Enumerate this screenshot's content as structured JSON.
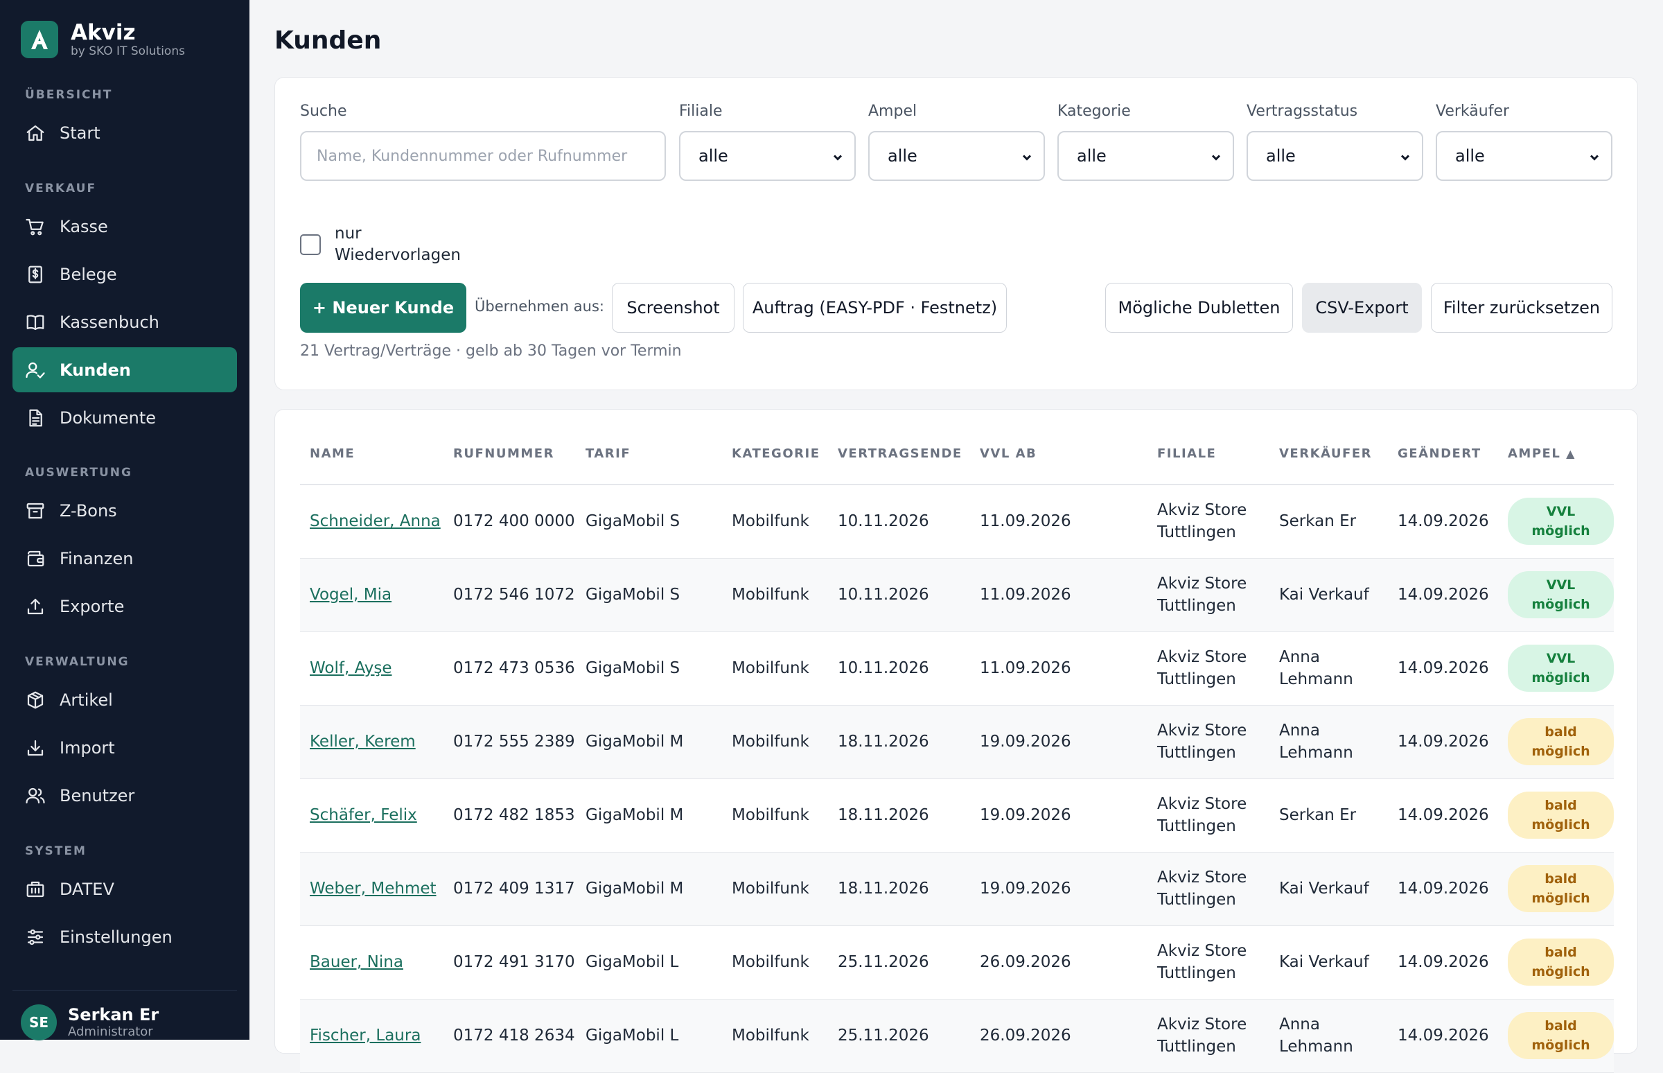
{
  "brand": {
    "name": "Akviz",
    "sub": "by SKO IT Solutions"
  },
  "sidebar": {
    "sections": {
      "uebersicht": "ÜBERSICHT",
      "verkauf": "VERKAUF",
      "auswertung": "AUSWERTUNG",
      "verwaltung": "VERWALTUNG",
      "system": "SYSTEM"
    },
    "items": [
      {
        "label": "Start",
        "icon": "home-icon"
      },
      {
        "label": "Kasse",
        "icon": "cart-icon"
      },
      {
        "label": "Belege",
        "icon": "receipt-icon"
      },
      {
        "label": "Kassenbuch",
        "icon": "book-icon"
      },
      {
        "label": "Kunden",
        "icon": "user-check-icon",
        "active": true
      },
      {
        "label": "Dokumente",
        "icon": "document-icon"
      },
      {
        "label": "Z-Bons",
        "icon": "archive-icon"
      },
      {
        "label": "Finanzen",
        "icon": "wallet-icon"
      },
      {
        "label": "Exporte",
        "icon": "upload-icon"
      },
      {
        "label": "Artikel",
        "icon": "package-icon"
      },
      {
        "label": "Import",
        "icon": "download-icon"
      },
      {
        "label": "Benutzer",
        "icon": "users-icon"
      },
      {
        "label": "DATEV",
        "icon": "building-icon"
      },
      {
        "label": "Einstellungen",
        "icon": "sliders-icon"
      }
    ],
    "user": {
      "initials": "SE",
      "name": "Serkan Er",
      "role": "Administrator"
    }
  },
  "page": {
    "title": "Kunden"
  },
  "filters": {
    "search_label": "Suche",
    "search_placeholder": "Name, Kundennummer oder Rufnummer",
    "filiale_label": "Filiale",
    "filiale_value": "alle",
    "ampel_label": "Ampel",
    "ampel_value": "alle",
    "kategorie_label": "Kategorie",
    "kategorie_value": "alle",
    "vertragsstatus_label": "Vertragsstatus",
    "vertragsstatus_value": "alle",
    "verkaeufer_label": "Verkäufer",
    "verkaeufer_value": "alle",
    "checkbox_label": "nur Wiedervorlagen",
    "checkbox_checked": false
  },
  "actions": {
    "new_customer": "+ Neuer Kunde",
    "uebernehmen_label": "Übernehmen aus:",
    "screenshot": "Screenshot",
    "auftrag": "Auftrag (EASY-PDF · Festnetz)",
    "dubletten": "Mögliche Dubletten",
    "csv_export": "CSV-Export",
    "reset": "Filter zurücksetzen"
  },
  "hint": "21 Vertrag/Verträge · gelb ab 30 Tagen vor Termin",
  "table": {
    "columns": [
      "NAME",
      "RUFNUMMER",
      "TARIF",
      "KATEGORIE",
      "VERTRAGSENDE",
      "VVL AB",
      "FILIALE",
      "VERKÄUFER",
      "GEÄNDERT",
      "AMPEL"
    ],
    "sort_indicator": "▲",
    "rows": [
      {
        "name": "Schneider, Anna",
        "phone": "0172 400 0000",
        "tarif": "GigaMobil S",
        "kategorie": "Mobilfunk",
        "ende": "10.11.2026",
        "vvl": "11.09.2026",
        "filiale": "Akviz Store Tuttlingen",
        "verkaeufer": "Serkan Er",
        "geaendert": "14.09.2026",
        "ampel": "VVL möglich",
        "ampel_color": "green"
      },
      {
        "name": "Vogel, Mia",
        "phone": "0172 546 1072",
        "tarif": "GigaMobil S",
        "kategorie": "Mobilfunk",
        "ende": "10.11.2026",
        "vvl": "11.09.2026",
        "filiale": "Akviz Store Tuttlingen",
        "verkaeufer": "Kai Verkauf",
        "geaendert": "14.09.2026",
        "ampel": "VVL möglich",
        "ampel_color": "green"
      },
      {
        "name": "Wolf, Ayşe",
        "phone": "0172 473 0536",
        "tarif": "GigaMobil S",
        "kategorie": "Mobilfunk",
        "ende": "10.11.2026",
        "vvl": "11.09.2026",
        "filiale": "Akviz Store Tuttlingen",
        "verkaeufer": "Anna Lehmann",
        "geaendert": "14.09.2026",
        "ampel": "VVL möglich",
        "ampel_color": "green"
      },
      {
        "name": "Keller, Kerem",
        "phone": "0172 555 2389",
        "tarif": "GigaMobil M",
        "kategorie": "Mobilfunk",
        "ende": "18.11.2026",
        "vvl": "19.09.2026",
        "filiale": "Akviz Store Tuttlingen",
        "verkaeufer": "Anna Lehmann",
        "geaendert": "14.09.2026",
        "ampel": "bald möglich",
        "ampel_color": "yellow"
      },
      {
        "name": "Schäfer, Felix",
        "phone": "0172 482 1853",
        "tarif": "GigaMobil M",
        "kategorie": "Mobilfunk",
        "ende": "18.11.2026",
        "vvl": "19.09.2026",
        "filiale": "Akviz Store Tuttlingen",
        "verkaeufer": "Serkan Er",
        "geaendert": "14.09.2026",
        "ampel": "bald möglich",
        "ampel_color": "yellow"
      },
      {
        "name": "Weber, Mehmet",
        "phone": "0172 409 1317",
        "tarif": "GigaMobil M",
        "kategorie": "Mobilfunk",
        "ende": "18.11.2026",
        "vvl": "19.09.2026",
        "filiale": "Akviz Store Tuttlingen",
        "verkaeufer": "Kai Verkauf",
        "geaendert": "14.09.2026",
        "ampel": "bald möglich",
        "ampel_color": "yellow"
      },
      {
        "name": "Bauer, Nina",
        "phone": "0172 491 3170",
        "tarif": "GigaMobil L",
        "kategorie": "Mobilfunk",
        "ende": "25.11.2026",
        "vvl": "26.09.2026",
        "filiale": "Akviz Store Tuttlingen",
        "verkaeufer": "Kai Verkauf",
        "geaendert": "14.09.2026",
        "ampel": "bald möglich",
        "ampel_color": "yellow"
      },
      {
        "name": "Fischer, Laura",
        "phone": "0172 418 2634",
        "tarif": "GigaMobil L",
        "kategorie": "Mobilfunk",
        "ende": "25.11.2026",
        "vvl": "26.09.2026",
        "filiale": "Akviz Store Tuttlingen",
        "verkaeufer": "Anna Lehmann",
        "geaendert": "14.09.2026",
        "ampel": "bald möglich",
        "ampel_color": "yellow"
      }
    ]
  },
  "colors": {
    "accent": "#1b7a68",
    "sidebar_bg": "#111a2c",
    "green_pill": "#d8f5e5",
    "yellow_pill": "#fdf0c4"
  }
}
